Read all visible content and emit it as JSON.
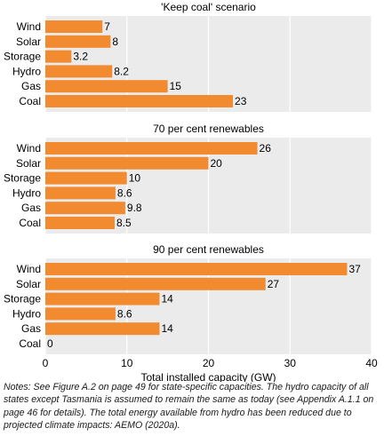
{
  "chart_data": {
    "type": "bar",
    "orientation": "horizontal",
    "categories": [
      "Wind",
      "Solar",
      "Storage",
      "Hydro",
      "Gas",
      "Coal"
    ],
    "panels": [
      {
        "title": "'Keep coal' scenario",
        "values": [
          7,
          8,
          3.2,
          8.2,
          15,
          23
        ]
      },
      {
        "title": "70 per cent renewables",
        "values": [
          26,
          20,
          10,
          8.6,
          9.8,
          8.5
        ]
      },
      {
        "title": "90 per cent renewables",
        "values": [
          37,
          27,
          14,
          8.6,
          14,
          0
        ]
      }
    ],
    "xlabel": "Total installed capacity (GW)",
    "xlim": [
      0,
      40
    ],
    "xticks": [
      0,
      10,
      20,
      30,
      40
    ],
    "bar_color": "#f28b30",
    "panel_background": "#ebebeb",
    "grid": true
  },
  "notes": "Notes: See Figure A.2 on page 49 for state-specific capacities. The hydro capacity of all states except Tasmania is assumed to remain the same as today (see Appendix A.1.1 on page 46 for details). The total energy available from hydro has been reduced due to projected climate impacts: AEMO (2020a)."
}
